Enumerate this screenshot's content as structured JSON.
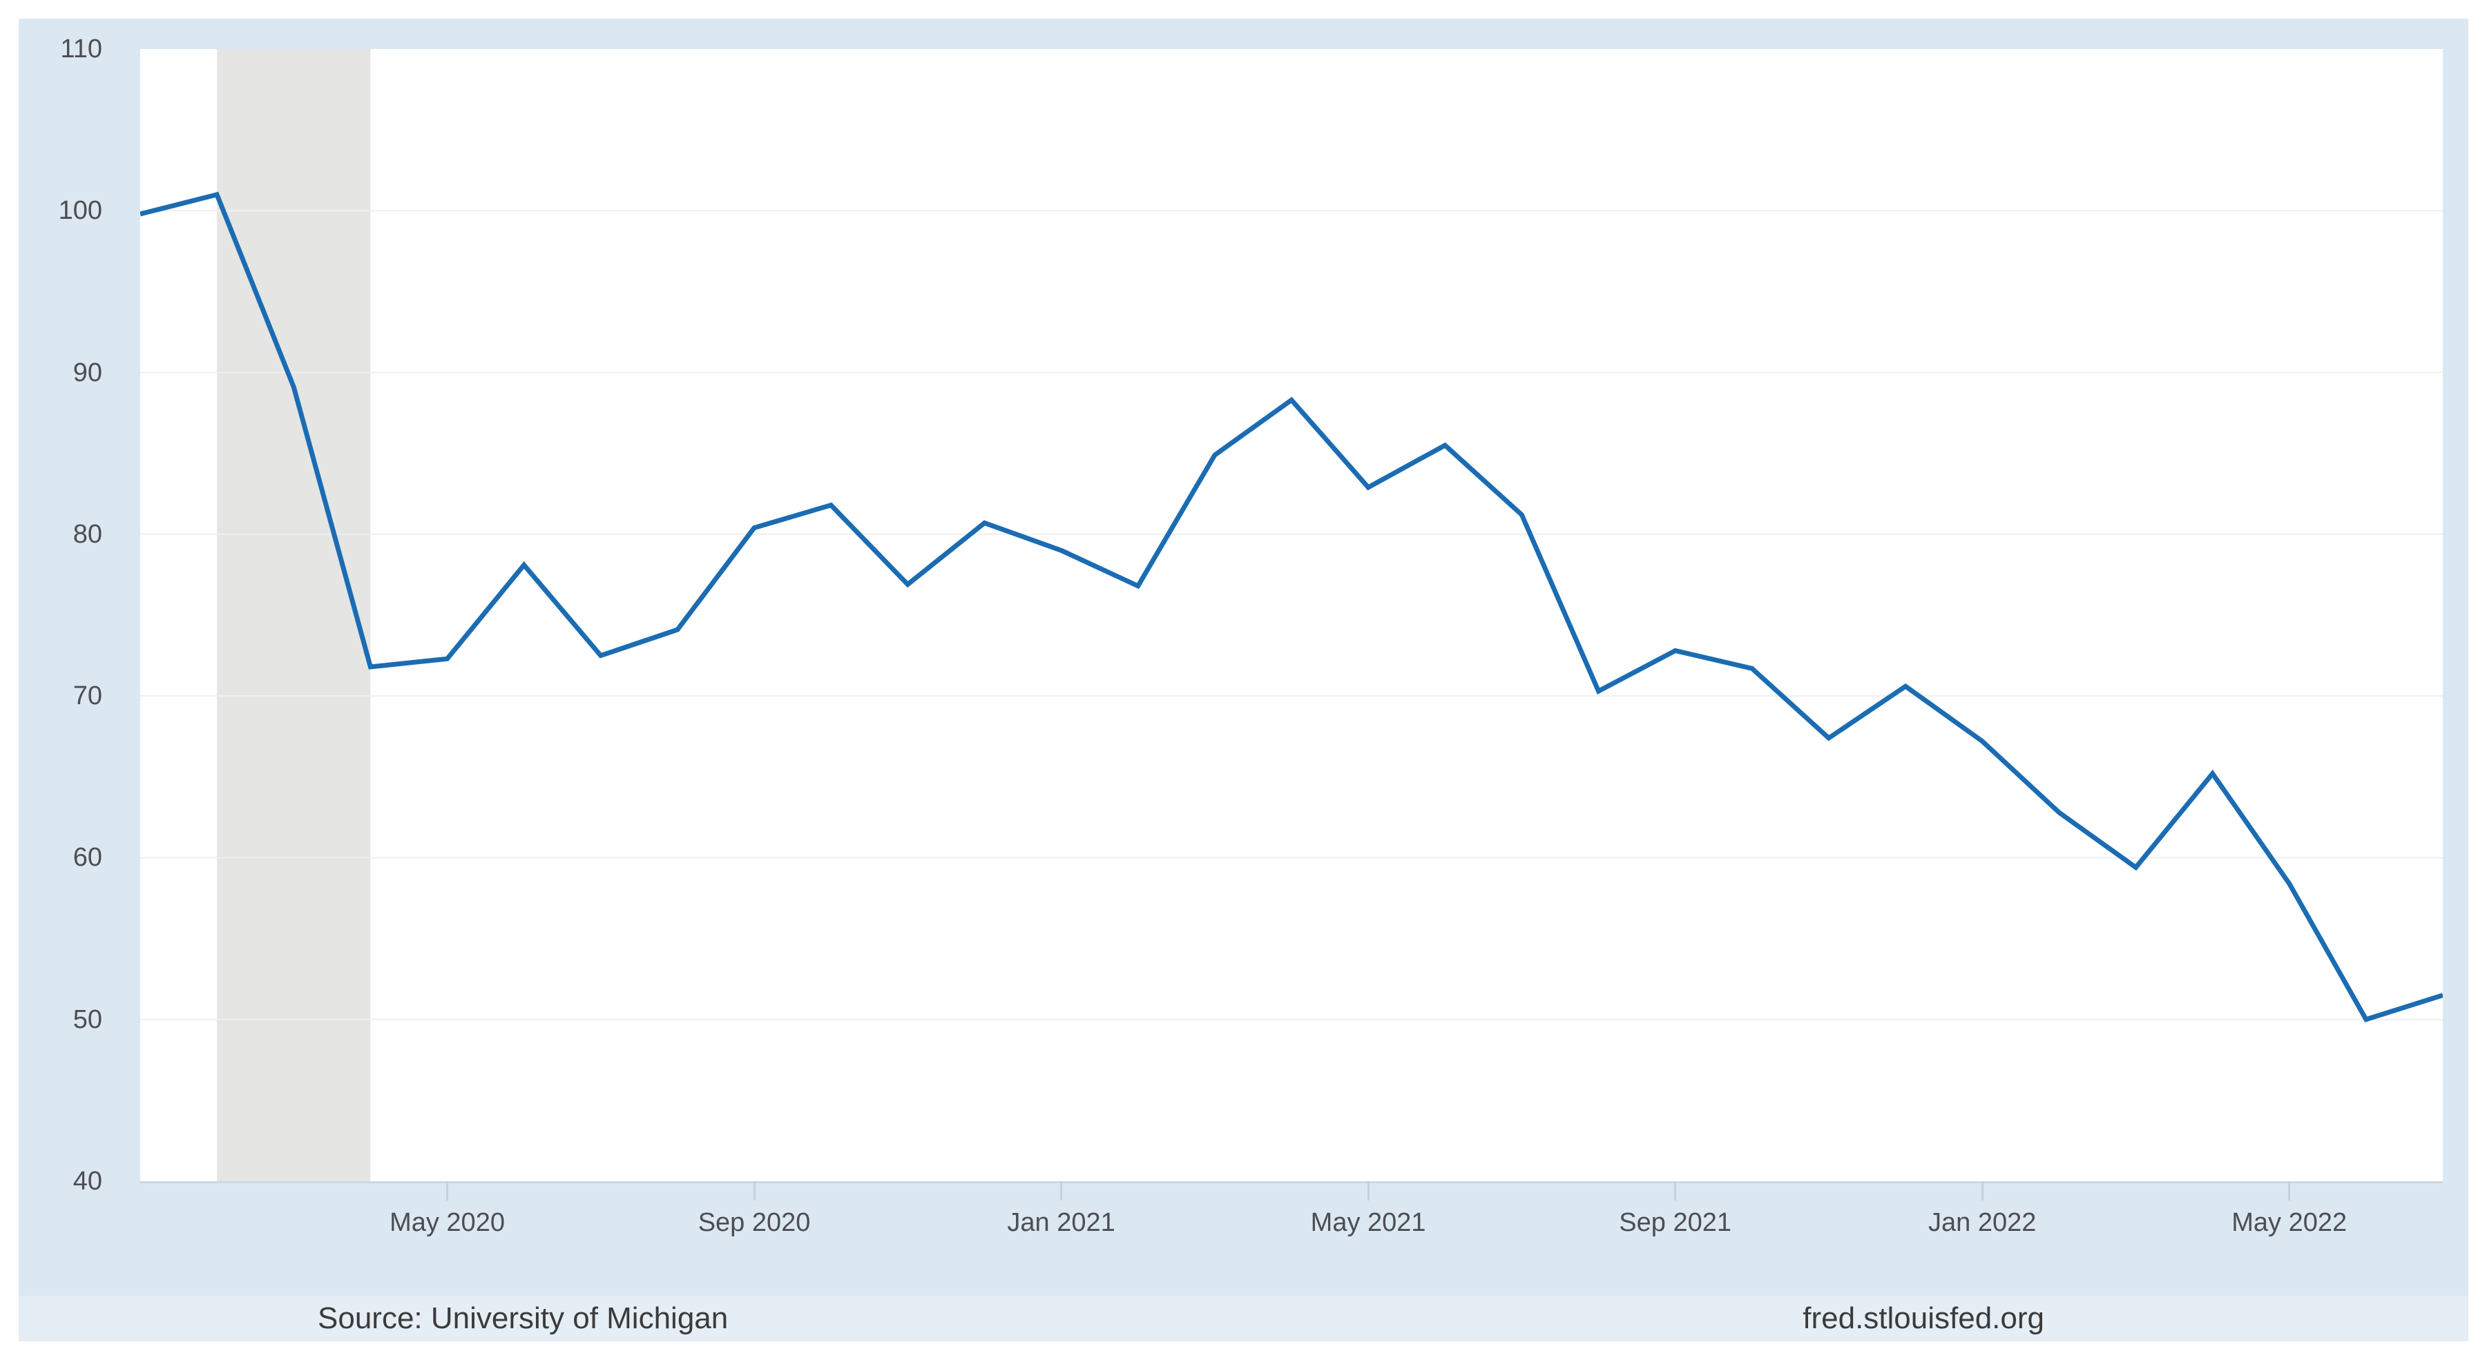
{
  "footer": {
    "source": "Source: University of Michigan",
    "site": "fred.stlouisfed.org"
  },
  "colors": {
    "panel_bg": "#dce8f1",
    "plot_bg": "#ffffff",
    "line": "#1b6cb2",
    "band": "#e5e5e4",
    "grid": "#efefef",
    "axis": "#cdd7e1",
    "tick": "#c5d1df",
    "tick_text": "#4c4e52",
    "footer_text": "#3b3b3b",
    "footer_strip": "#e5eef5"
  },
  "chart_data": {
    "type": "line",
    "title": "",
    "x": [
      "Jan 2020",
      "Feb 2020",
      "Mar 2020",
      "Apr 2020",
      "May 2020",
      "Jun 2020",
      "Jul 2020",
      "Aug 2020",
      "Sep 2020",
      "Oct 2020",
      "Nov 2020",
      "Dec 2020",
      "Jan 2021",
      "Feb 2021",
      "Mar 2021",
      "Apr 2021",
      "May 2021",
      "Jun 2021",
      "Jul 2021",
      "Aug 2021",
      "Sep 2021",
      "Oct 2021",
      "Nov 2021",
      "Dec 2021",
      "Jan 2022",
      "Feb 2022",
      "Mar 2022",
      "Apr 2022",
      "May 2022",
      "Jun 2022",
      "Jul 2022"
    ],
    "values": [
      99.8,
      101.0,
      89.1,
      71.8,
      72.3,
      78.1,
      72.5,
      74.1,
      80.4,
      81.8,
      76.9,
      80.7,
      79.0,
      76.8,
      84.9,
      88.3,
      82.9,
      85.5,
      81.2,
      70.3,
      72.8,
      71.7,
      67.4,
      70.6,
      67.2,
      62.8,
      59.4,
      65.2,
      58.4,
      50.0,
      51.5
    ],
    "ylim": [
      40,
      110
    ],
    "y_ticks": [
      110,
      100,
      90,
      80,
      70,
      60,
      50,
      40
    ],
    "x_tick_labels": [
      "May 2020",
      "Sep 2020",
      "Jan 2021",
      "May 2021",
      "Sep 2021",
      "Jan 2022",
      "May 2022"
    ],
    "x_tick_indices": [
      4,
      8,
      12,
      16,
      20,
      24,
      28
    ],
    "grid": "horizontal",
    "legend": "none",
    "recession_shading": {
      "start": "Feb 2020",
      "end": "Apr 2020",
      "start_index": 1,
      "end_index": 3
    }
  }
}
